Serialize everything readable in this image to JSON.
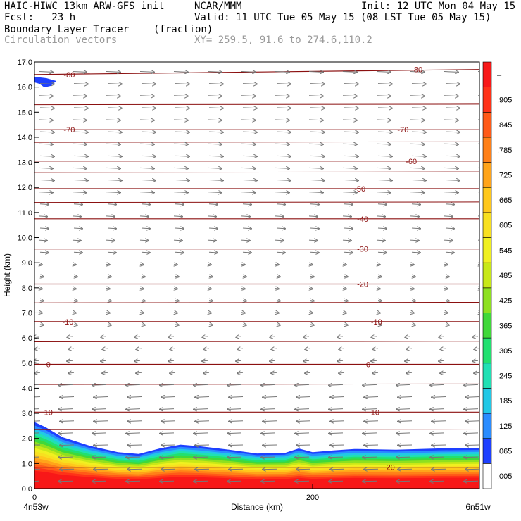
{
  "header": {
    "title_left": "HAIC-HIWC 13km ARW-GFS init",
    "org": "NCAR/MMM",
    "init": "Init: 12 UTC Mon 04 May 15",
    "fcst": "Fcst:   23 h",
    "valid": "Valid: 11 UTC Tue 05 May 15 (08 LST Tue 05 May 15)",
    "field": "Boundary Layer Tracer",
    "units": "(fraction)",
    "vectors": "Circulation vectors",
    "xy": "XY= 259.5, 91.6 to 274.6,110.2"
  },
  "colors": {
    "contour": "#8b1010",
    "vector": "#777777",
    "colorbar": [
      "#ffffff",
      "#1e40ff",
      "#2a8cff",
      "#22c8e6",
      "#20e0b4",
      "#22e070",
      "#40d83a",
      "#8ee020",
      "#c8e818",
      "#f0f020",
      "#f8e020",
      "#ffc81c",
      "#ffa41a",
      "#ff8018",
      "#ff5a18",
      "#ff3218",
      "#f81818"
    ]
  },
  "chart_data": {
    "type": "cross-section",
    "xlabel": "Distance (km)",
    "ylabel": "Height (km)",
    "xlim": [
      0,
      320
    ],
    "ylim": [
      0.0,
      17.0
    ],
    "x_ticks": [
      0,
      200
    ],
    "x_tick_labels": [
      "0",
      "200"
    ],
    "x_end_labels": [
      "4n53w",
      "6n51w"
    ],
    "y_ticks": [
      "0.0",
      "1.0",
      "2.0",
      "3.0",
      "4.0",
      "5.0",
      "6.0",
      "7.0",
      "8.0",
      "9.0",
      "10.0",
      "11.0",
      "12.0",
      "13.0",
      "14.0",
      "15.0",
      "16.0",
      "17.0"
    ],
    "colorbar_labels": [
      ".005",
      ".065",
      ".125",
      ".185",
      ".245",
      ".305",
      ".365",
      ".425",
      ".485",
      ".545",
      ".605",
      ".665",
      ".725",
      ".785",
      ".845",
      ".905",
      "–"
    ],
    "temperature_contours": [
      {
        "level": "-80",
        "labels": [
          {
            "x": 25,
            "y": 16.5
          },
          {
            "x": 275,
            "y": 16.7
          }
        ]
      },
      {
        "level": "-70",
        "labels": [
          {
            "x": 25,
            "y": 14.3
          },
          {
            "x": 265,
            "y": 14.3
          }
        ]
      },
      {
        "level": "-60",
        "labels": [
          {
            "x": 271,
            "y": 13.05
          }
        ]
      },
      {
        "level": "-50",
        "labels": [
          {
            "x": 234,
            "y": 11.95
          }
        ]
      },
      {
        "level": "-40",
        "labels": [
          {
            "x": 236,
            "y": 10.75
          }
        ]
      },
      {
        "level": "-30",
        "labels": [
          {
            "x": 236,
            "y": 9.55
          }
        ]
      },
      {
        "level": "-20",
        "labels": [
          {
            "x": 236,
            "y": 8.15
          }
        ]
      },
      {
        "level": "-10",
        "labels": [
          {
            "x": 24,
            "y": 6.65
          },
          {
            "x": 246,
            "y": 6.65
          }
        ]
      },
      {
        "level": "0",
        "labels": [
          {
            "x": 10,
            "y": 4.95
          },
          {
            "x": 240,
            "y": 4.95
          }
        ]
      },
      {
        "level": "10",
        "labels": [
          {
            "x": 10,
            "y": 3.05
          },
          {
            "x": 245,
            "y": 3.05
          }
        ]
      },
      {
        "level": "20",
        "labels": [
          {
            "x": 256,
            "y": 0.85
          }
        ]
      }
    ],
    "tracer_top_km": [
      {
        "x": 0,
        "y": 2.65
      },
      {
        "x": 8,
        "y": 2.45
      },
      {
        "x": 20,
        "y": 2.05
      },
      {
        "x": 40,
        "y": 1.7
      },
      {
        "x": 60,
        "y": 1.45
      },
      {
        "x": 75,
        "y": 1.38
      },
      {
        "x": 90,
        "y": 1.6
      },
      {
        "x": 105,
        "y": 1.75
      },
      {
        "x": 120,
        "y": 1.68
      },
      {
        "x": 140,
        "y": 1.55
      },
      {
        "x": 160,
        "y": 1.4
      },
      {
        "x": 180,
        "y": 1.42
      },
      {
        "x": 190,
        "y": 1.6
      },
      {
        "x": 200,
        "y": 1.45
      },
      {
        "x": 215,
        "y": 1.52
      },
      {
        "x": 230,
        "y": 1.58
      },
      {
        "x": 260,
        "y": 1.55
      },
      {
        "x": 290,
        "y": 1.6
      },
      {
        "x": 320,
        "y": 1.62
      }
    ]
  }
}
